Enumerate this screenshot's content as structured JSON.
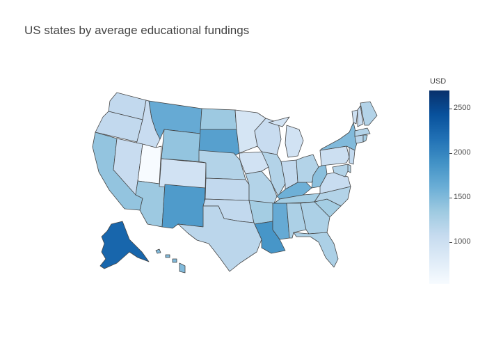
{
  "title": "US states by average educational fundings",
  "colorbar": {
    "title": "USD",
    "min": 530,
    "max": 2700,
    "ticks": [
      {
        "label": "2500",
        "value": 2500
      },
      {
        "label": "2000",
        "value": 2000
      },
      {
        "label": "1500",
        "value": 1500
      },
      {
        "label": "1000",
        "value": 1000
      }
    ],
    "colors": [
      "#f7fbff",
      "#deebf7",
      "#c6dbef",
      "#9ecae1",
      "#6baed6",
      "#4292c6",
      "#2171b5",
      "#08519c",
      "#08306b"
    ]
  },
  "chart_data": {
    "type": "choropleth",
    "scope": "usa",
    "title": "US states by average educational fundings",
    "colorbar_title": "USD",
    "range": [
      530,
      2700
    ],
    "states": {
      "WA": 1100,
      "OR": 1100,
      "CA": 1400,
      "ID": 1050,
      "NV": 1050,
      "UT": 530,
      "AZ": 1350,
      "MT": 1650,
      "WY": 1400,
      "CO": 950,
      "NM": 1800,
      "ND": 1350,
      "SD": 1750,
      "NE": 1200,
      "KS": 1100,
      "OK": 1100,
      "TX": 1150,
      "MN": 900,
      "IA": 950,
      "MO": 1200,
      "AR": 1300,
      "LA": 1850,
      "WI": 1050,
      "IL": 1200,
      "MS": 1650,
      "MI": 950,
      "IN": 1100,
      "KY": 1600,
      "TN": 1300,
      "AL": 1250,
      "OH": 1200,
      "WV": 1450,
      "GA": 1250,
      "FL": 1250,
      "SC": 1300,
      "NC": 1200,
      "VA": 1050,
      "PA": 1000,
      "NY": 1500,
      "ME": 1200,
      "VT": 1000,
      "NH": 1050,
      "MA": 1200,
      "CT": 1150,
      "RI": 1300,
      "NJ": 1100,
      "DE": 1200,
      "MD": 1200,
      "AK": 2250,
      "HI": 1500
    }
  }
}
